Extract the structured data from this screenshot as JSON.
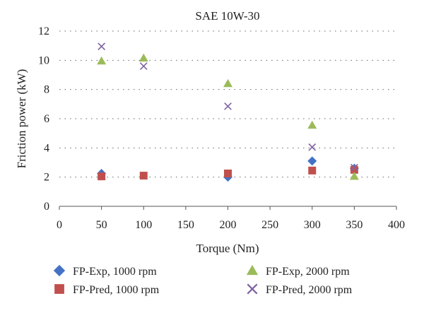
{
  "chart_data": {
    "type": "scatter",
    "title": "SAE 10W-30",
    "xlabel": "Torque (Nm)",
    "ylabel": "Friction power (kW)",
    "xlim": [
      0,
      400
    ],
    "ylim": [
      0,
      12
    ],
    "xticks": [
      0,
      50,
      100,
      150,
      200,
      250,
      300,
      350,
      400
    ],
    "yticks": [
      0,
      2,
      4,
      6,
      8,
      10,
      12
    ],
    "grid": "horizontal dotted",
    "legend_position": "bottom",
    "series": [
      {
        "name": "FP-Exp, 1000 rpm",
        "marker": "diamond",
        "color": "#4472C4",
        "x": [
          50,
          200,
          300,
          350
        ],
        "y": [
          2.25,
          2.0,
          3.1,
          2.6
        ]
      },
      {
        "name": "FP-Pred, 1000 rpm",
        "marker": "square",
        "color": "#C0504D",
        "x": [
          50,
          100,
          200,
          300,
          350
        ],
        "y": [
          2.05,
          2.1,
          2.25,
          2.45,
          2.5
        ]
      },
      {
        "name": "FP-Exp, 2000 rpm",
        "marker": "triangle",
        "color": "#9BBB59",
        "x": [
          50,
          100,
          200,
          300,
          350
        ],
        "y": [
          9.95,
          10.15,
          8.4,
          5.55,
          2.05
        ]
      },
      {
        "name": "FP-Pred, 2000 rpm",
        "marker": "x",
        "color": "#8064A2",
        "x": [
          50,
          100,
          200,
          300,
          350
        ],
        "y": [
          10.95,
          9.6,
          6.85,
          4.05,
          2.65
        ]
      }
    ]
  }
}
